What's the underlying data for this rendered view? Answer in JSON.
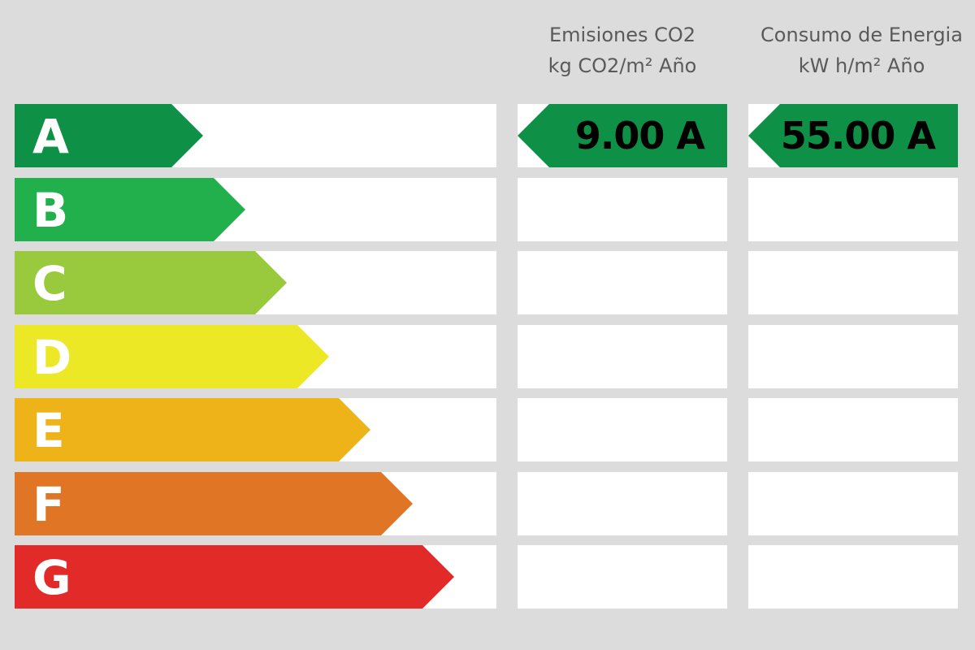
{
  "headers": {
    "co2": {
      "line1": "Emisiones CO2",
      "line2": "kg CO2/m² Año"
    },
    "energy": {
      "line1": "Consumo de Energia",
      "line2": "kW h/m² Año"
    }
  },
  "classes": [
    {
      "letter": "A",
      "color": "#0e9146"
    },
    {
      "letter": "B",
      "color": "#21b04b"
    },
    {
      "letter": "C",
      "color": "#99c93c"
    },
    {
      "letter": "D",
      "color": "#ece826"
    },
    {
      "letter": "E",
      "color": "#edb319"
    },
    {
      "letter": "F",
      "color": "#e07625"
    },
    {
      "letter": "G",
      "color": "#e22a29"
    }
  ],
  "ratings": {
    "co2": {
      "value": "9.00",
      "class": "A",
      "text": "9.00 A"
    },
    "energy": {
      "value": "55.00",
      "class": "A",
      "text": "55.00 A"
    }
  }
}
